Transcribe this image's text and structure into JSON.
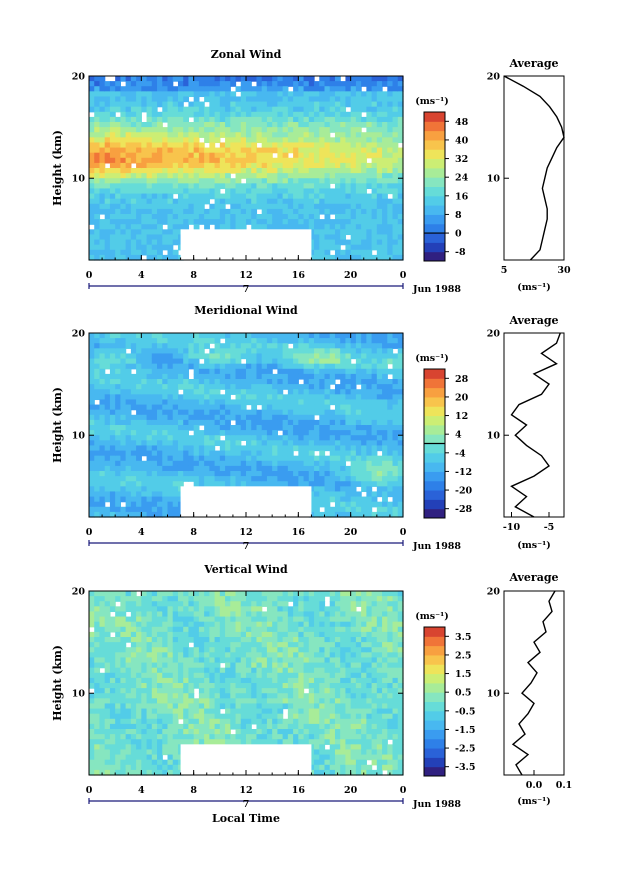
{
  "chart_data": [
    {
      "type": "heatmap",
      "title": "Zonal Wind",
      "ylabel": "Height (km)",
      "xlabel": "",
      "x_ticks": [
        "0",
        "4",
        "8",
        "12",
        "16",
        "20",
        "0"
      ],
      "y_ticks": [
        "20",
        "10"
      ],
      "date_label": "Jun 1988",
      "date_tick": "7",
      "xlim": [
        0,
        24
      ],
      "ylim": [
        2,
        20
      ],
      "missing_block": {
        "x": [
          7,
          17
        ],
        "y": [
          2,
          5
        ]
      },
      "colorbar": {
        "units": "(ms⁻¹)",
        "labels": [
          "48",
          "40",
          "32",
          "24",
          "16",
          "8",
          "0",
          "-8"
        ],
        "min": -12,
        "max": 52,
        "zero_line": 0
      },
      "field": {
        "base": 12,
        "jet_height": 12,
        "jet_peak": 44,
        "jet_width": 2.4,
        "east_decay": 0.45,
        "top_value": 6
      },
      "profile": {
        "title": "Average",
        "x_ticks": [
          "5",
          "30"
        ],
        "xlim": [
          5,
          30
        ],
        "y_ticks": [
          "20",
          "10"
        ],
        "xlabel": "(ms⁻¹)",
        "heights": [
          2,
          3,
          4,
          5,
          6,
          7,
          8,
          9,
          10,
          11,
          12,
          13,
          14,
          15,
          16,
          17,
          18,
          19,
          20
        ],
        "values": [
          16,
          20,
          21,
          22,
          23,
          23,
          22,
          21,
          22,
          23,
          25,
          27,
          30,
          29,
          27,
          24,
          20,
          13,
          5
        ]
      }
    },
    {
      "type": "heatmap",
      "title": "Meridional Wind",
      "ylabel": "Height (km)",
      "xlabel": "",
      "x_ticks": [
        "0",
        "4",
        "8",
        "12",
        "16",
        "20",
        "0"
      ],
      "y_ticks": [
        "20",
        "10"
      ],
      "date_label": "Jun 1988",
      "date_tick": "7",
      "xlim": [
        0,
        24
      ],
      "ylim": [
        2,
        20
      ],
      "missing_block": {
        "x": [
          7,
          17
        ],
        "y": [
          2,
          5
        ]
      },
      "colorbar": {
        "units": "(ms⁻¹)",
        "labels": [
          "28",
          "20",
          "12",
          "4",
          "-4",
          "-12",
          "-20",
          "-28"
        ],
        "min": -32,
        "max": 32,
        "zero_line": 0
      },
      "field": {
        "base": -9,
        "low_patch": {
          "x": 22,
          "y": 6,
          "value": 4
        },
        "upper_patch": {
          "y": 17.5,
          "value": 2
        }
      },
      "profile": {
        "title": "Average",
        "x_ticks": [
          "-10",
          "-5"
        ],
        "xlim": [
          -11,
          -3
        ],
        "y_ticks": [
          "20",
          "10"
        ],
        "xlabel": "(ms⁻¹)",
        "heights": [
          2,
          3,
          4,
          5,
          6,
          7,
          8,
          9,
          10,
          11,
          12,
          13,
          14,
          15,
          16,
          17,
          18,
          19,
          20
        ],
        "values": [
          -7,
          -9.5,
          -8,
          -10,
          -7,
          -5,
          -6,
          -8,
          -9.5,
          -8,
          -10,
          -9,
          -6,
          -5,
          -7,
          -4,
          -6,
          -4,
          -3.5
        ]
      }
    },
    {
      "type": "heatmap",
      "title": "Vertical Wind",
      "ylabel": "Height (km)",
      "xlabel": "Local Time",
      "x_ticks": [
        "0",
        "4",
        "8",
        "12",
        "16",
        "20",
        "0"
      ],
      "y_ticks": [
        "20",
        "10"
      ],
      "date_label": "Jun 1988",
      "date_tick": "7",
      "xlim": [
        0,
        24
      ],
      "ylim": [
        2,
        20
      ],
      "missing_block": {
        "x": [
          7,
          17
        ],
        "y": [
          2,
          5
        ]
      },
      "colorbar": {
        "units": "(ms⁻¹)",
        "labels": [
          "3.5",
          "2.5",
          "1.5",
          "0.5",
          "-0.5",
          "-1.5",
          "-2.5",
          "-3.5"
        ],
        "min": -4,
        "max": 4,
        "zero_line": null
      },
      "field": {
        "base": 0.0
      },
      "profile": {
        "title": "Average",
        "x_ticks": [
          "0.0",
          "0.1"
        ],
        "xlim": [
          -0.1,
          0.1
        ],
        "y_ticks": [
          "20",
          "10"
        ],
        "xlabel": "(ms⁻¹)",
        "heights": [
          2,
          3,
          4,
          5,
          6,
          7,
          8,
          9,
          10,
          11,
          12,
          13,
          14,
          15,
          16,
          17,
          18,
          19,
          20
        ],
        "values": [
          -0.04,
          -0.06,
          -0.02,
          -0.07,
          -0.03,
          -0.05,
          -0.02,
          0.0,
          -0.04,
          -0.01,
          0.01,
          -0.02,
          0.02,
          0.0,
          0.04,
          0.03,
          0.06,
          0.05,
          0.07
        ]
      }
    }
  ]
}
